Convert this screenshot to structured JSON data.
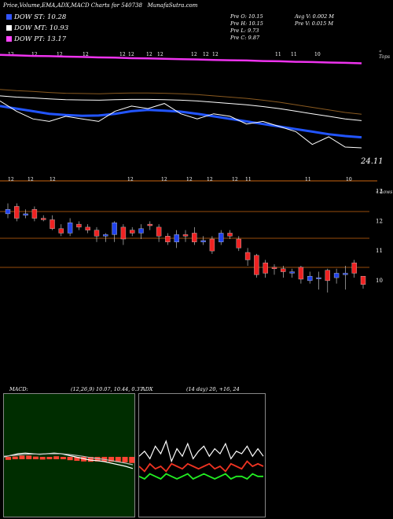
{
  "header": {
    "title": "Price,Volume,EMA,ADX,MACD Charts for 540738",
    "site": "MunafaSutra.com"
  },
  "legend": [
    {
      "label": "DOW ST: 10.28",
      "color": "#3355ff"
    },
    {
      "label": "DOW MT: 10.93",
      "color": "#ffffff"
    },
    {
      "label": "DOW PT: 13.17",
      "color": "#ff44ff"
    }
  ],
  "quote": {
    "open": "Pre   O: 10.15",
    "high": "Pre   H: 10.15",
    "low": "Pre   L: 9.73",
    "close": "Pre   C: 9.87",
    "avg_vol": "Avg V: 0.002  M",
    "pre_vol": "Pre   V: 0.015 M"
  },
  "side_labels": {
    "upper": "« Tops",
    "lower": "« Lows"
  },
  "last_value_label": "24.11",
  "date_labels_top": [
    "12",
    "12",
    "12",
    "12",
    "12",
    "12",
    "12",
    "12",
    "12",
    "12",
    "12",
    "11",
    "11",
    "10"
  ],
  "date_labels_mid": [
    "12",
    "12",
    "12",
    "12",
    "12",
    "12",
    "12",
    "12",
    "11",
    "11",
    "10"
  ],
  "price_axis": [
    "13",
    "12",
    "11",
    "10"
  ],
  "macd": {
    "title": "MACD:",
    "params": "(12,26,9) 10.07,  10.44,  0.37"
  },
  "adx": {
    "title": "ADX",
    "params": "(14  day) 20,  +16,  24"
  },
  "colors": {
    "background": "#000000",
    "up_candle": "#2244ee",
    "down_candle": "#ee2222",
    "pt_line": "#ee33ee",
    "st_line": "#2255ff",
    "price_line": "#ffffff",
    "level_line": "#cc6611",
    "macd_bg": "#002d00",
    "macd_hist": "#ff4433"
  },
  "chart_data": [
    {
      "type": "line",
      "title": "Price, EMA",
      "series": [
        {
          "name": "DOW PT",
          "values": [
            13.5,
            13.48,
            13.46,
            13.45,
            13.43,
            13.42,
            13.4,
            13.39,
            13.37,
            13.36,
            13.35,
            13.33,
            13.32,
            13.3,
            13.29,
            13.28,
            13.26,
            13.25,
            13.23,
            13.22,
            13.2,
            13.19,
            13.17
          ]
        },
        {
          "name": "DOW MT",
          "values": [
            11.9,
            11.85,
            11.82,
            11.78,
            11.75,
            11.74,
            11.73,
            11.75,
            11.76,
            11.76,
            11.75,
            11.73,
            11.7,
            11.65,
            11.6,
            11.55,
            11.48,
            11.4,
            11.3,
            11.2,
            11.1,
            11.0,
            10.93
          ]
        },
        {
          "name": "DOW ST",
          "values": [
            11.5,
            11.4,
            11.3,
            11.2,
            11.15,
            11.12,
            11.13,
            11.2,
            11.3,
            11.35,
            11.32,
            11.28,
            11.2,
            11.1,
            11.0,
            10.9,
            10.8,
            10.7,
            10.6,
            10.5,
            10.4,
            10.33,
            10.28
          ]
        },
        {
          "name": "Close",
          "values": [
            11.7,
            11.3,
            11.0,
            10.9,
            11.1,
            11.0,
            10.9,
            11.3,
            11.5,
            11.4,
            11.6,
            11.2,
            11.0,
            11.2,
            11.1,
            10.8,
            10.9,
            10.7,
            10.5,
            10.0,
            10.3,
            9.9,
            9.87
          ]
        }
      ]
    },
    {
      "type": "bar",
      "title": "Candles",
      "yticks": [
        13,
        12,
        11,
        10
      ],
      "candles": [
        {
          "o": 12.25,
          "c": 12.4,
          "h": 12.6,
          "l": 12.1
        },
        {
          "o": 12.5,
          "c": 12.1,
          "h": 12.6,
          "l": 12.0
        },
        {
          "o": 12.2,
          "c": 12.25,
          "h": 12.4,
          "l": 12.1
        },
        {
          "o": 12.4,
          "c": 12.1,
          "h": 12.5,
          "l": 12.0
        },
        {
          "o": 12.1,
          "c": 12.05,
          "h": 12.2,
          "l": 12.0
        },
        {
          "o": 12.05,
          "c": 11.75,
          "h": 12.2,
          "l": 11.7
        },
        {
          "o": 11.75,
          "c": 11.6,
          "h": 11.9,
          "l": 11.5
        },
        {
          "o": 11.6,
          "c": 11.95,
          "h": 12.1,
          "l": 11.5
        },
        {
          "o": 11.9,
          "c": 11.8,
          "h": 12.0,
          "l": 11.7
        },
        {
          "o": 11.8,
          "c": 11.7,
          "h": 11.9,
          "l": 11.6
        },
        {
          "o": 11.7,
          "c": 11.5,
          "h": 11.8,
          "l": 11.3
        },
        {
          "o": 11.5,
          "c": 11.55,
          "h": 11.6,
          "l": 11.3
        },
        {
          "o": 11.55,
          "c": 11.95,
          "h": 12.0,
          "l": 11.3
        },
        {
          "o": 11.8,
          "c": 11.4,
          "h": 11.9,
          "l": 11.2
        },
        {
          "o": 11.7,
          "c": 11.6,
          "h": 11.8,
          "l": 11.5
        },
        {
          "o": 11.6,
          "c": 11.75,
          "h": 11.9,
          "l": 11.4
        },
        {
          "o": 11.9,
          "c": 11.85,
          "h": 12.0,
          "l": 11.7
        },
        {
          "o": 11.8,
          "c": 11.5,
          "h": 11.9,
          "l": 11.3
        },
        {
          "o": 11.5,
          "c": 11.3,
          "h": 11.6,
          "l": 11.2
        },
        {
          "o": 11.3,
          "c": 11.55,
          "h": 11.7,
          "l": 11.1
        },
        {
          "o": 11.55,
          "c": 11.5,
          "h": 11.7,
          "l": 11.3
        },
        {
          "o": 11.6,
          "c": 11.3,
          "h": 11.8,
          "l": 11.2
        },
        {
          "o": 11.3,
          "c": 11.35,
          "h": 11.5,
          "l": 11.2
        },
        {
          "o": 11.4,
          "c": 11.0,
          "h": 11.5,
          "l": 10.9
        },
        {
          "o": 11.3,
          "c": 11.6,
          "h": 11.7,
          "l": 11.2
        },
        {
          "o": 11.6,
          "c": 11.5,
          "h": 11.7,
          "l": 11.4
        },
        {
          "o": 11.4,
          "c": 11.1,
          "h": 11.5,
          "l": 11.0
        },
        {
          "o": 10.95,
          "c": 10.7,
          "h": 11.1,
          "l": 10.5
        },
        {
          "o": 10.85,
          "c": 10.2,
          "h": 10.9,
          "l": 10.1
        },
        {
          "o": 10.6,
          "c": 10.25,
          "h": 10.7,
          "l": 10.1
        },
        {
          "o": 10.45,
          "c": 10.4,
          "h": 10.55,
          "l": 10.2
        },
        {
          "o": 10.4,
          "c": 10.3,
          "h": 10.5,
          "l": 10.1
        },
        {
          "o": 10.25,
          "c": 10.3,
          "h": 10.4,
          "l": 10.1
        },
        {
          "o": 10.45,
          "c": 10.05,
          "h": 10.5,
          "l": 9.9
        },
        {
          "o": 10.0,
          "c": 10.15,
          "h": 10.3,
          "l": 9.9
        },
        {
          "o": 10.1,
          "c": 10.1,
          "h": 10.3,
          "l": 9.7
        },
        {
          "o": 10.35,
          "c": 10.0,
          "h": 10.4,
          "l": 9.6
        },
        {
          "o": 10.1,
          "c": 10.25,
          "h": 10.4,
          "l": 9.9
        },
        {
          "o": 10.2,
          "c": 10.25,
          "h": 10.5,
          "l": 9.7
        },
        {
          "o": 10.6,
          "c": 10.25,
          "h": 10.7,
          "l": 10.1
        },
        {
          "o": 10.15,
          "c": 9.87,
          "h": 10.15,
          "l": 9.73
        }
      ]
    },
    {
      "type": "line",
      "title": "MACD",
      "series": [
        {
          "name": "MACD",
          "values": [
            0.0,
            0.05,
            0.1,
            0.12,
            0.1,
            0.08,
            0.1,
            0.12,
            0.1,
            0.05,
            0.0,
            -0.05,
            -0.1,
            -0.12,
            -0.15,
            -0.2,
            -0.25,
            -0.3,
            -0.37
          ]
        },
        {
          "name": "Signal",
          "values": [
            0.02,
            0.04,
            0.06,
            0.08,
            0.09,
            0.09,
            0.1,
            0.1,
            0.1,
            0.08,
            0.05,
            0.02,
            -0.02,
            -0.05,
            -0.08,
            -0.12,
            -0.16,
            -0.2,
            -0.25
          ]
        }
      ]
    },
    {
      "type": "line",
      "title": "ADX",
      "series": [
        {
          "name": "ADX",
          "values": [
            24,
            26,
            23,
            28,
            25,
            30,
            22,
            27,
            24,
            29,
            23,
            26,
            28,
            24,
            27,
            25,
            29,
            23,
            26,
            25,
            28,
            24,
            27,
            24
          ]
        },
        {
          "name": "+DI",
          "values": [
            16,
            15,
            17,
            16,
            15,
            17,
            16,
            15,
            16,
            17,
            15,
            16,
            17,
            16,
            15,
            16,
            17,
            15,
            16,
            16,
            15,
            17,
            16,
            16
          ]
        },
        {
          "name": "-DI",
          "values": [
            20,
            18,
            21,
            19,
            20,
            18,
            21,
            20,
            19,
            21,
            20,
            19,
            20,
            21,
            19,
            20,
            18,
            21,
            20,
            19,
            22,
            20,
            21,
            20
          ]
        }
      ]
    }
  ]
}
